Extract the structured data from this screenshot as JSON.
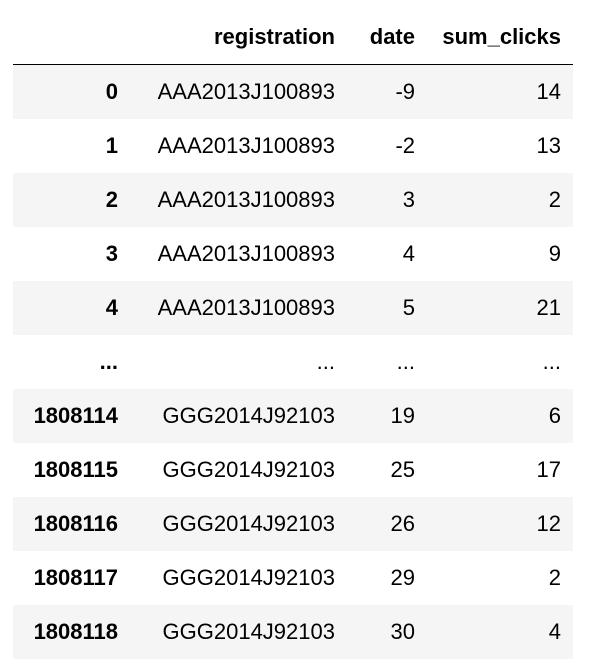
{
  "table": {
    "columns": [
      "",
      "registration",
      "date",
      "sum_clicks"
    ],
    "rows": [
      {
        "index": "0",
        "registration": "AAA2013J100893",
        "date": "-9",
        "sum_clicks": "14"
      },
      {
        "index": "1",
        "registration": "AAA2013J100893",
        "date": "-2",
        "sum_clicks": "13"
      },
      {
        "index": "2",
        "registration": "AAA2013J100893",
        "date": "3",
        "sum_clicks": "2"
      },
      {
        "index": "3",
        "registration": "AAA2013J100893",
        "date": "4",
        "sum_clicks": "9"
      },
      {
        "index": "4",
        "registration": "AAA2013J100893",
        "date": "5",
        "sum_clicks": "21"
      },
      {
        "index": "...",
        "registration": "...",
        "date": "...",
        "sum_clicks": "..."
      },
      {
        "index": "1808114",
        "registration": "GGG2014J92103",
        "date": "19",
        "sum_clicks": "6"
      },
      {
        "index": "1808115",
        "registration": "GGG2014J92103",
        "date": "25",
        "sum_clicks": "17"
      },
      {
        "index": "1808116",
        "registration": "GGG2014J92103",
        "date": "26",
        "sum_clicks": "12"
      },
      {
        "index": "1808117",
        "registration": "GGG2014J92103",
        "date": "29",
        "sum_clicks": "2"
      },
      {
        "index": "1808118",
        "registration": "GGG2014J92103",
        "date": "30",
        "sum_clicks": "4"
      }
    ]
  }
}
